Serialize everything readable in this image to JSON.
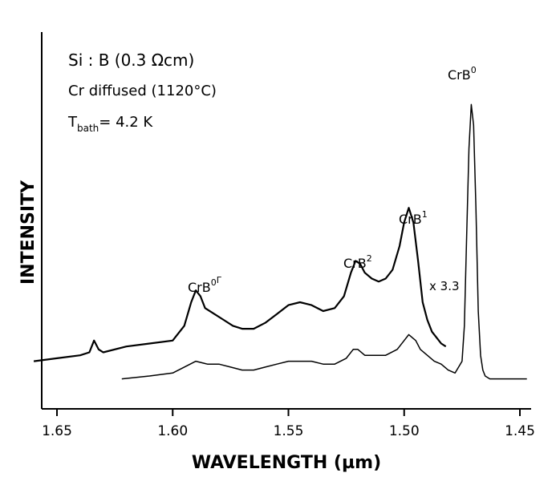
{
  "chart_data": {
    "type": "line",
    "xlabel": "WAVELENGTH (µm)",
    "ylabel": "INTENSITY",
    "x_reversed": true,
    "xlim": [
      1.66,
      1.445
    ],
    "ylim": [
      0,
      100
    ],
    "x_ticks": [
      1.65,
      1.6,
      1.55,
      1.5,
      1.45
    ],
    "x_tick_labels": [
      "1.65",
      "1.60",
      "1.55",
      "1.50",
      "1.45"
    ],
    "grid": false,
    "annotations": {
      "sample": "Si : B  (0.3 Ωcm)",
      "treatment": "Cr diffused (1120°C)",
      "t_main": "T",
      "t_sub": "bath",
      "t_value": "= 4.2 K",
      "peak_crb0_main": "CrB",
      "peak_crb0_sup": "0",
      "peak_crb1_main": "CrB",
      "peak_crb1_sup": "1",
      "peak_crb2_main": "CrB",
      "peak_crb2_sup": "2",
      "peak_crb0g_main": "CrB",
      "peak_crb0g_sup": "0",
      "peak_crb0g_sup2": "Γ",
      "scale_factor": "x 3.3"
    },
    "series": [
      {
        "role": "magnified",
        "x": [
          1.66,
          1.65,
          1.64,
          1.636,
          1.634,
          1.632,
          1.63,
          1.62,
          1.61,
          1.6,
          1.595,
          1.592,
          1.59,
          1.588,
          1.586,
          1.582,
          1.578,
          1.574,
          1.57,
          1.565,
          1.56,
          1.555,
          1.55,
          1.545,
          1.54,
          1.535,
          1.53,
          1.526,
          1.523,
          1.521,
          1.519,
          1.517,
          1.514,
          1.511,
          1.508,
          1.505,
          1.502,
          1.5,
          1.498,
          1.496,
          1.494,
          1.492,
          1.49,
          1.488,
          1.486,
          1.484,
          1.482
        ],
        "values": [
          8,
          9,
          10,
          11,
          15,
          12,
          11,
          13,
          14,
          15,
          20,
          28,
          32,
          30,
          26,
          24,
          22,
          20,
          19,
          19,
          21,
          24,
          27,
          28,
          27,
          25,
          26,
          30,
          38,
          42,
          41,
          38,
          36,
          35,
          36,
          39,
          47,
          55,
          60,
          55,
          42,
          28,
          22,
          18,
          16,
          14,
          13
        ]
      },
      {
        "role": "unscaled",
        "x": [
          1.622,
          1.61,
          1.6,
          1.595,
          1.59,
          1.585,
          1.58,
          1.575,
          1.57,
          1.565,
          1.56,
          1.555,
          1.55,
          1.545,
          1.54,
          1.535,
          1.53,
          1.525,
          1.522,
          1.52,
          1.517,
          1.513,
          1.508,
          1.503,
          1.5,
          1.498,
          1.495,
          1.493,
          1.49,
          1.487,
          1.484,
          1.481,
          1.478,
          1.475,
          1.474,
          1.473,
          1.472,
          1.471,
          1.47,
          1.469,
          1.468,
          1.467,
          1.466,
          1.465,
          1.463,
          1.46,
          1.45,
          1.447
        ],
        "values": [
          2,
          3,
          4,
          6,
          8,
          7,
          7,
          6,
          5,
          5,
          6,
          7,
          8,
          8,
          8,
          7,
          7,
          9,
          12,
          12,
          10,
          10,
          10,
          12,
          15,
          17,
          15,
          12,
          10,
          8,
          7,
          5,
          4,
          8,
          20,
          50,
          80,
          95,
          88,
          60,
          25,
          10,
          5,
          3,
          2,
          2,
          2,
          2
        ]
      }
    ]
  }
}
